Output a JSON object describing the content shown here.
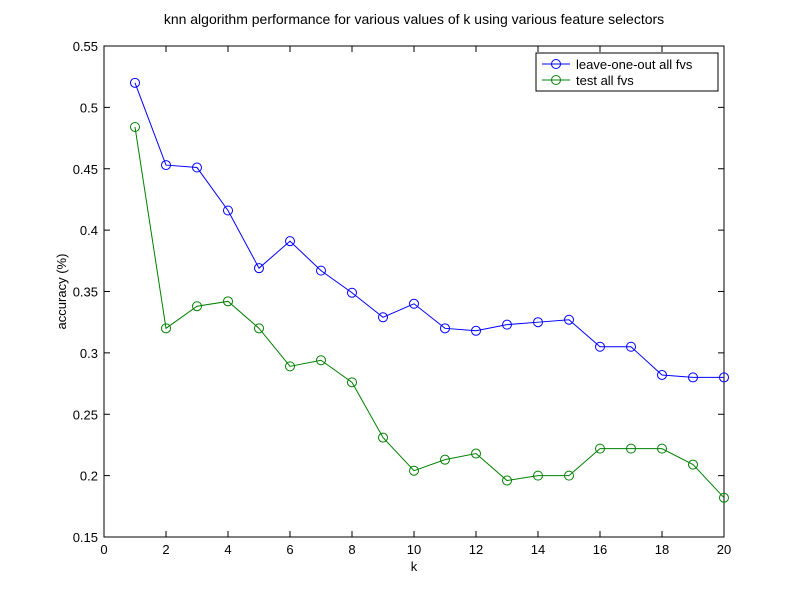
{
  "chart_data": {
    "type": "line",
    "title": "knn algorithm performance for various values of k using various feature selectors",
    "xlabel": "k",
    "ylabel": "accuracy (%)",
    "xlim": [
      0,
      20
    ],
    "ylim": [
      0.15,
      0.55
    ],
    "xticks": [
      0,
      2,
      4,
      6,
      8,
      10,
      12,
      14,
      16,
      18,
      20
    ],
    "yticks": [
      0.15,
      0.2,
      0.25,
      0.3,
      0.35,
      0.4,
      0.45,
      0.5,
      0.55
    ],
    "ytick_labels": [
      "0.15",
      "0.2",
      "0.25",
      "0.3",
      "0.35",
      "0.4",
      "0.45",
      "0.5",
      "0.55"
    ],
    "grid": false,
    "legend_position": "top-right",
    "x": [
      1,
      2,
      3,
      4,
      5,
      6,
      7,
      8,
      9,
      10,
      11,
      12,
      13,
      14,
      15,
      16,
      17,
      18,
      19,
      20
    ],
    "series": [
      {
        "name": "leave-one-out all fvs",
        "color": "#0000ff",
        "marker": "circle",
        "values": [
          0.52,
          0.453,
          0.451,
          0.416,
          0.369,
          0.391,
          0.367,
          0.349,
          0.329,
          0.34,
          0.32,
          0.318,
          0.323,
          0.325,
          0.327,
          0.305,
          0.305,
          0.282,
          0.28,
          0.28
        ]
      },
      {
        "name": "test all fvs",
        "color": "#008000",
        "marker": "circle",
        "values": [
          0.484,
          0.32,
          0.338,
          0.342,
          0.32,
          0.289,
          0.294,
          0.276,
          0.231,
          0.204,
          0.213,
          0.218,
          0.196,
          0.2,
          0.2,
          0.222,
          0.222,
          0.222,
          0.209,
          0.182
        ]
      }
    ]
  }
}
